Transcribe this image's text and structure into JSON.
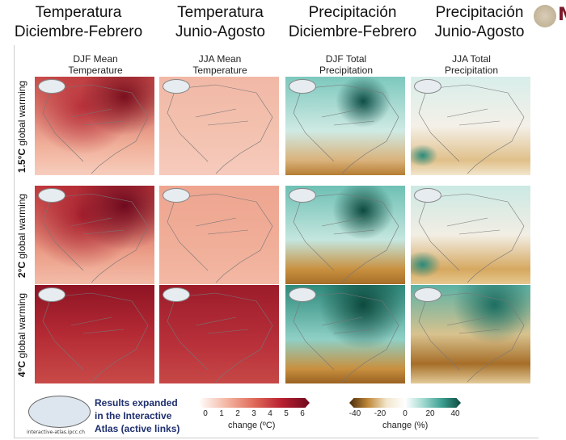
{
  "header": {
    "titles": [
      [
        "Temperatura",
        "Diciembre-Febrero"
      ],
      [
        "Temperatura",
        "Junio-Agosto"
      ],
      [
        "Precipitación",
        "Diciembre-Febrero"
      ],
      [
        "Precipitación",
        "Junio-Agosto"
      ]
    ],
    "logo_text": "M"
  },
  "columns": [
    [
      "DJF Mean",
      "Temperature"
    ],
    [
      "JJA Mean",
      "Temperature"
    ],
    [
      "DJF Total",
      "Precipitation"
    ],
    [
      "JJA Total",
      "Precipitation"
    ]
  ],
  "rows": [
    {
      "level": "1.5°C",
      "suffix": " global warming"
    },
    {
      "level": "2°C",
      "suffix": " global warming"
    },
    {
      "level": "4°C",
      "suffix": " global warming"
    }
  ],
  "footer": {
    "atlas_url": "interactive-atlas.ipcc.ch",
    "results_lines": [
      "Results expanded",
      "in the Interactive",
      "Atlas (active links)"
    ]
  },
  "temp_legend": {
    "ticks": [
      "0",
      "1",
      "2",
      "3",
      "4",
      "5",
      "6"
    ],
    "label": "change (ºC)",
    "colors": [
      "#ffffff",
      "#f4b8a4",
      "#e06a5a",
      "#b82030",
      "#6e0a1e"
    ]
  },
  "precip_legend": {
    "ticks": [
      "-40",
      "-20",
      "0",
      "20",
      "40"
    ],
    "label": "change (%)",
    "colors": [
      "#4a2a08",
      "#c08838",
      "#f2e6cc",
      "#ffffff",
      "#9fd8d0",
      "#3a9e90",
      "#0d4a3e"
    ]
  }
}
